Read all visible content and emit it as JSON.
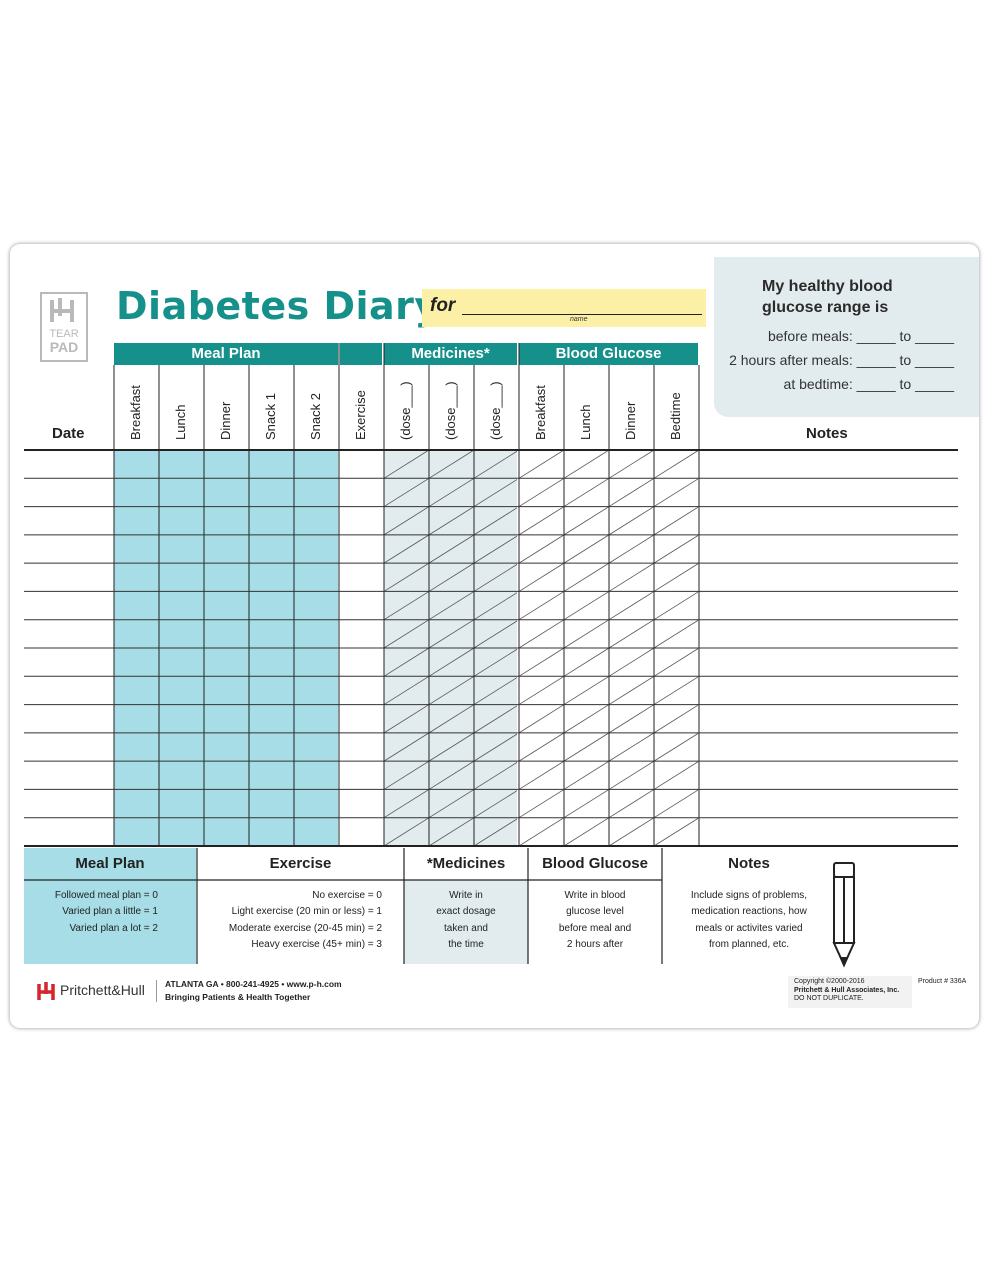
{
  "header": {
    "logo_line1": "TEAR",
    "logo_line2": "PAD",
    "title": "Diabetes Diary",
    "for_label": "for",
    "name_caption": "name"
  },
  "range_box": {
    "title_line1": "My healthy blood",
    "title_line2": "glucose range is",
    "rows": [
      "before meals: _____ to _____",
      "2 hours after meals: _____ to _____",
      "at bedtime: _____ to _____"
    ]
  },
  "groups": {
    "meal_plan": "Meal Plan",
    "medicines": "Medicines*",
    "blood_glucose": "Blood Glucose"
  },
  "columns": {
    "date": "Date",
    "meal_plan": [
      "Breakfast",
      "Lunch",
      "Dinner",
      "Snack 1",
      "Snack 2"
    ],
    "exercise": "Exercise",
    "medicines": [
      "(dose___)",
      "(dose___)",
      "(dose___)"
    ],
    "blood_glucose": [
      "Breakfast",
      "Lunch",
      "Dinner",
      "Bedtime"
    ],
    "notes": "Notes"
  },
  "legend": {
    "meal_plan": {
      "title": "Meal Plan",
      "lines": [
        "Followed meal plan  = 0",
        "Varied plan a little  = 1",
        "Varied plan a lot  = 2"
      ]
    },
    "exercise": {
      "title": "Exercise",
      "lines": [
        "No exercise  = 0",
        "Light exercise (20 min or less)  = 1",
        "Moderate exercise (20-45 min)  = 2",
        "Heavy exercise (45+ min)  = 3"
      ]
    },
    "medicines": {
      "title": "*Medicines",
      "lines": [
        "Write in",
        "exact dosage",
        "taken and",
        "the time"
      ]
    },
    "blood_glucose": {
      "title": "Blood Glucose",
      "lines": [
        "Write in blood",
        "glucose level",
        "before meal and",
        "2 hours after"
      ]
    },
    "notes": {
      "title": "Notes",
      "lines": [
        "Include signs of problems,",
        "medication reactions, how",
        "meals or activites varied",
        "from planned, etc."
      ]
    }
  },
  "footer": {
    "brand": "Pritchett&Hull",
    "contact": "ATLANTA  GA  •  800-241-4925  •  www.p-h.com",
    "tagline": "Bringing Patients & Health Together",
    "copyright_lines": [
      "Copyright ©2000-2016",
      "Pritchett & Hull Associates, Inc.",
      "DO NOT DUPLICATE."
    ],
    "product": "Product # 336A"
  },
  "colors": {
    "teal": "#16908a",
    "light_blue": "#a6dde6",
    "light_gray": "#e2ecef",
    "yellow": "#fcf0a6"
  }
}
